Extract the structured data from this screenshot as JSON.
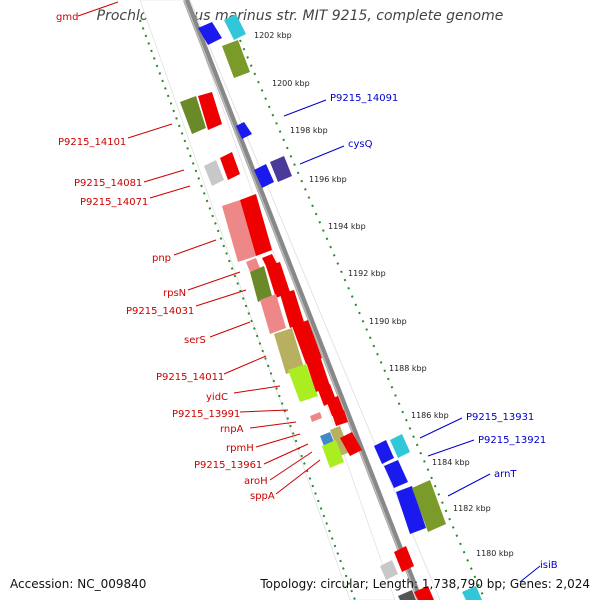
{
  "title": "Prochlorococcus marinus str. MIT 9215, complete genome",
  "footer": {
    "accession": "Accession: NC_009840",
    "summary": "Topology: circular; Length: 1,738,790 bp; Genes: 2,024"
  },
  "colors": {
    "left_label": "#cc0000",
    "right_label": "#0000cc",
    "backbone": "#777777",
    "tick": "#2a8a2a"
  },
  "kbp_ticks": [
    "1202 kbp",
    "1200 kbp",
    "1198 kbp",
    "1196 kbp",
    "1194 kbp",
    "1192 kbp",
    "1190 kbp",
    "1188 kbp",
    "1186 kbp",
    "1184 kbp",
    "1182 kbp",
    "1180 kbp"
  ],
  "left_genes": [
    "gmd",
    "P9215_14101",
    "P9215_14081",
    "P9215_14071",
    "pnp",
    "rpsN",
    "P9215_14031",
    "serS",
    "P9215_14011",
    "yidC",
    "P9215_13991",
    "rnpA",
    "rpmH",
    "P9215_13961",
    "aroH",
    "sppA"
  ],
  "right_genes": [
    "P9215_14091",
    "cysQ",
    "P9215_13931",
    "P9215_13921",
    "arnT",
    "isiB"
  ]
}
